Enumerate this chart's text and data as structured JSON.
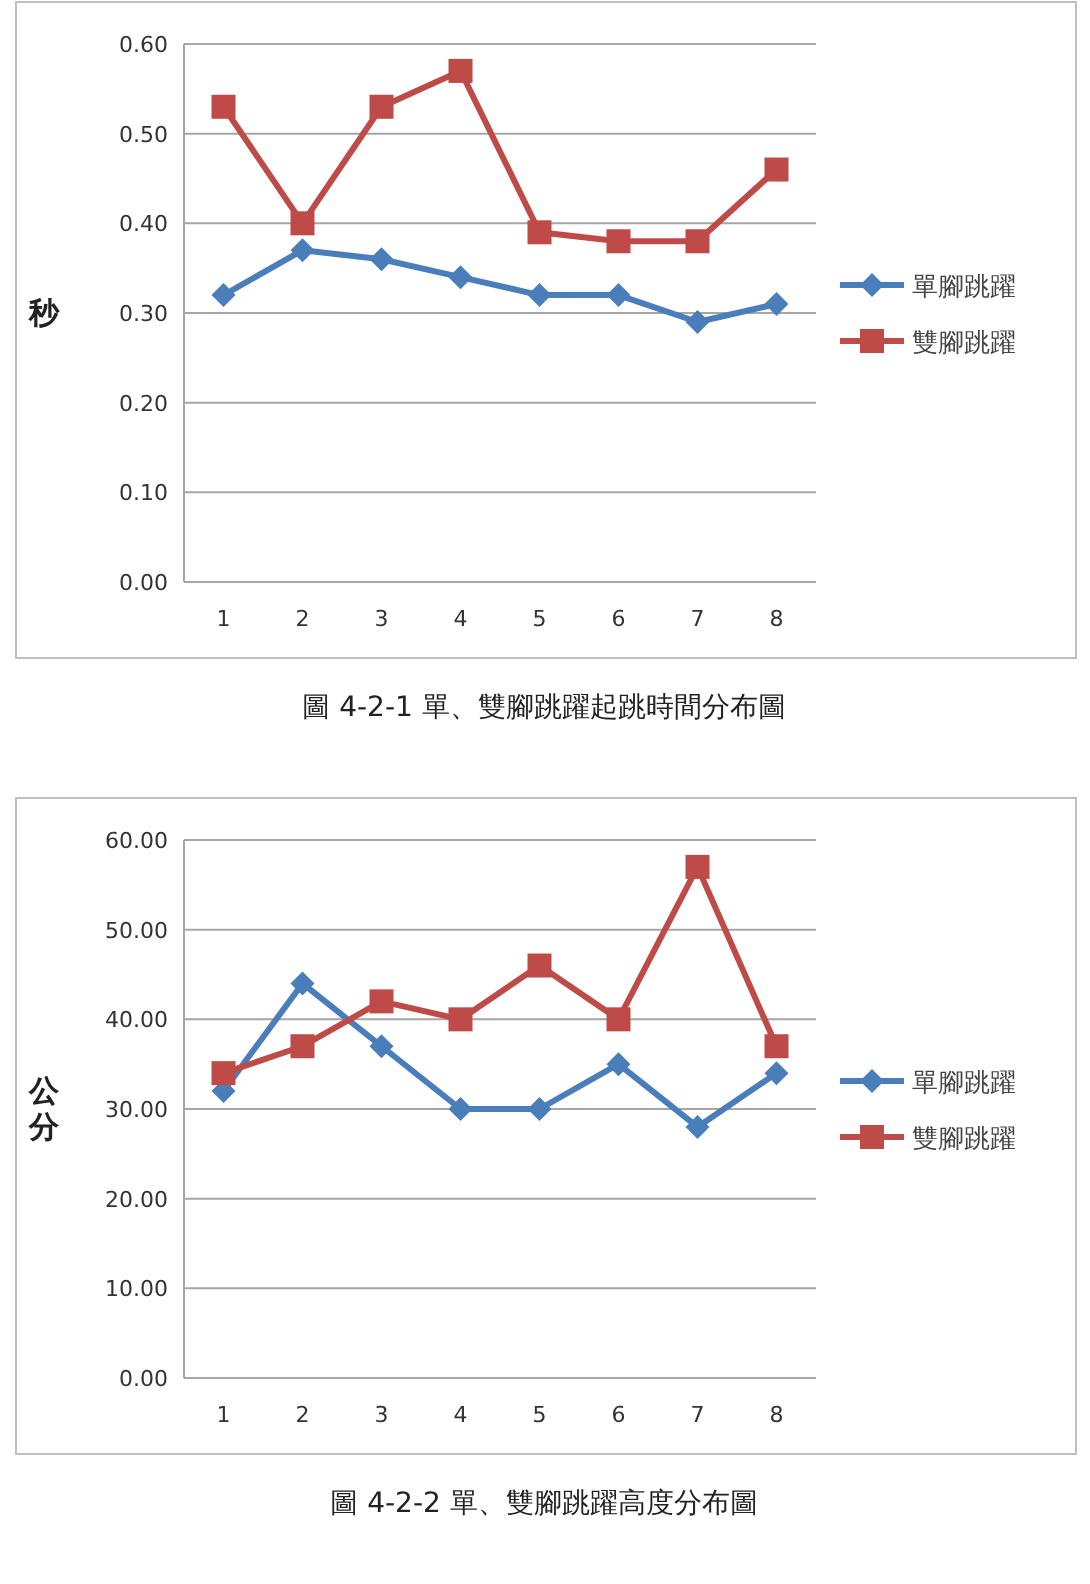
{
  "chart_data": [
    {
      "type": "line",
      "ylabel": "秒",
      "categories": [
        "1",
        "2",
        "3",
        "4",
        "5",
        "6",
        "7",
        "8"
      ],
      "ylim": [
        0,
        0.6
      ],
      "yticks": [
        {
          "value": 0,
          "label": "0.00"
        },
        {
          "value": 0.1,
          "label": "0.10"
        },
        {
          "value": 0.2,
          "label": "0.20"
        },
        {
          "value": 0.3,
          "label": "0.30"
        },
        {
          "value": 0.4,
          "label": "0.40"
        },
        {
          "value": 0.5,
          "label": "0.50"
        },
        {
          "value": 0.6,
          "label": "0.60"
        }
      ],
      "grid": "y",
      "legend": "right",
      "series": [
        {
          "name": "單腳跳躍",
          "color": "#4a7ebb",
          "marker": "diamond",
          "values": [
            0.32,
            0.37,
            0.36,
            0.34,
            0.32,
            0.32,
            0.29,
            0.31
          ]
        },
        {
          "name": "雙腳跳躍",
          "color": "#be4b48",
          "marker": "square",
          "values": [
            0.53,
            0.4,
            0.53,
            0.57,
            0.39,
            0.38,
            0.38,
            0.46
          ]
        }
      ],
      "annotations": [
        "圖 4-2-1 單、雙腳跳躍起跳時間分布圖"
      ]
    },
    {
      "type": "line",
      "ylabel": "公分",
      "categories": [
        "1",
        "2",
        "3",
        "4",
        "5",
        "6",
        "7",
        "8"
      ],
      "ylim": [
        0,
        60
      ],
      "yticks": [
        {
          "value": 0,
          "label": "0.00"
        },
        {
          "value": 10,
          "label": "10.00"
        },
        {
          "value": 20,
          "label": "20.00"
        },
        {
          "value": 30,
          "label": "30.00"
        },
        {
          "value": 40,
          "label": "40.00"
        },
        {
          "value": 50,
          "label": "50.00"
        },
        {
          "value": 60,
          "label": "60.00"
        }
      ],
      "grid": "y",
      "legend": "right",
      "series": [
        {
          "name": "單腳跳躍",
          "color": "#4a7ebb",
          "marker": "diamond",
          "values": [
            32,
            44,
            37,
            30,
            30,
            35,
            28,
            34
          ]
        },
        {
          "name": "雙腳跳躍",
          "color": "#be4b48",
          "marker": "square",
          "values": [
            34,
            37,
            42,
            40,
            46,
            40,
            57,
            37
          ]
        }
      ],
      "annotations": [
        "圖 4-2-2 單、雙腳跳躍高度分布圖"
      ]
    }
  ]
}
